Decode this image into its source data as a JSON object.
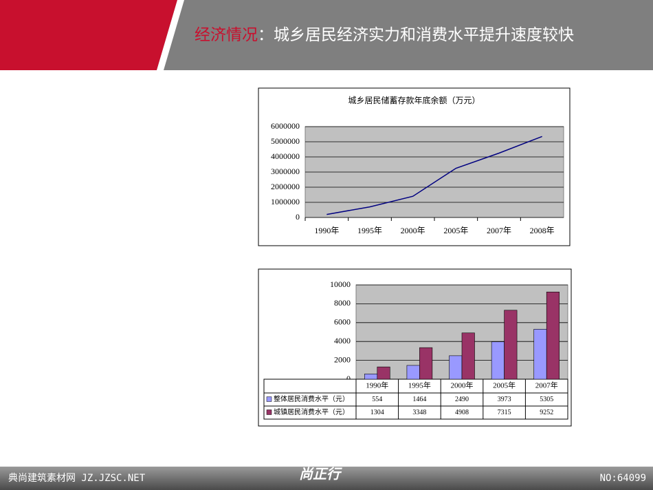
{
  "header": {
    "title_highlight": "经济情况",
    "title_rest": "：城乡居民经济实力和消费水平提升速度较快"
  },
  "chart_data": [
    {
      "type": "line",
      "title": "城乡居民储蓄存款年底余额（万元）",
      "categories": [
        "1990年",
        "1995年",
        "2000年",
        "2005年",
        "2007年",
        "2008年"
      ],
      "values": [
        200000,
        700000,
        1400000,
        3250000,
        4250000,
        5350000
      ],
      "color": "#000080",
      "ylim": [
        0,
        6000000
      ],
      "yticks": [
        0,
        1000000,
        2000000,
        3000000,
        4000000,
        5000000,
        6000000
      ],
      "grid": true
    },
    {
      "type": "bar",
      "categories": [
        "1990年",
        "1995年",
        "2000年",
        "2005年",
        "2007年"
      ],
      "series": [
        {
          "name": "整体居民消费水平（元）",
          "color": "#9999ff",
          "values": [
            554,
            1464,
            2490,
            3973,
            5305
          ]
        },
        {
          "name": "城镇居民消费水平（元）",
          "color": "#993366",
          "values": [
            1304,
            3348,
            4908,
            7315,
            9252
          ]
        }
      ],
      "ylim": [
        0,
        10000
      ],
      "yticks": [
        0,
        2000,
        4000,
        6000,
        8000,
        10000
      ],
      "grid": true
    }
  ],
  "footer": {
    "left": "典尚建筑素材网 JZ.JZSC.NET",
    "logo": "尚正行",
    "right": "NO:64099"
  }
}
